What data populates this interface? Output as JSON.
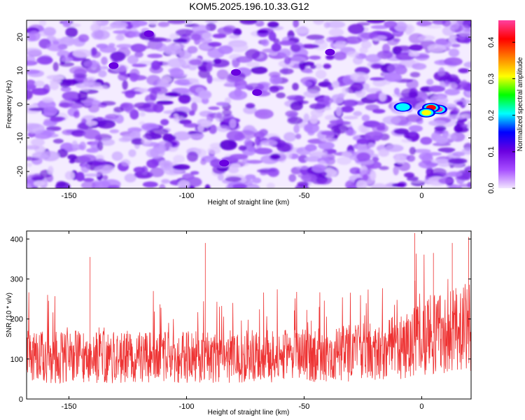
{
  "title": "KOM5.2025.196.10.33.G12",
  "chart_data": [
    {
      "type": "heatmap",
      "xlabel": "Height of straight line (km)",
      "ylabel": "Frequency (Hz)",
      "xlim": [
        -168,
        21
      ],
      "ylim": [
        -25,
        25
      ],
      "x_ticks": [
        -150,
        -100,
        -50,
        0
      ],
      "y_ticks": [
        -20,
        -10,
        0,
        10,
        20
      ],
      "colorbar": {
        "label": "Normalized spectral amplitude",
        "range": [
          0,
          0.46
        ],
        "ticks": [
          0.0,
          0.1,
          0.2,
          0.3,
          0.4
        ],
        "colors": [
          "#f2e6ff",
          "#a64dff",
          "#6a00e0",
          "#0000ff",
          "#00ffff",
          "#00ff00",
          "#ffff00",
          "#ff8000",
          "#ff0000",
          "#ff40a0"
        ]
      },
      "hotspots": [
        {
          "x": 7,
          "y": -1.5,
          "value": 0.46
        },
        {
          "x": 4,
          "y": -1.0,
          "value": 0.42
        },
        {
          "x": 2,
          "y": -2.5,
          "value": 0.3
        },
        {
          "x": -8,
          "y": -0.8,
          "value": 0.22
        },
        {
          "x": -131,
          "y": 11.5,
          "value": 0.12
        },
        {
          "x": -79,
          "y": 9.5,
          "value": 0.1
        },
        {
          "x": -70,
          "y": 3.5,
          "value": 0.1
        },
        {
          "x": -84,
          "y": -17.5,
          "value": 0.09
        },
        {
          "x": -116,
          "y": 21,
          "value": 0.08
        },
        {
          "x": -39,
          "y": 15.5,
          "value": 0.08
        }
      ]
    },
    {
      "type": "line",
      "xlabel": "Height of straight line (km)",
      "ylabel": "SNR (10 * v/v)",
      "xlim": [
        -168,
        21
      ],
      "ylim": [
        0,
        420
      ],
      "x_ticks": [
        -150,
        -100,
        -50,
        0
      ],
      "y_ticks": [
        0,
        100,
        200,
        300,
        400
      ],
      "color": "#ee3333",
      "baseline_profile": [
        {
          "x": -168,
          "y": 105
        },
        {
          "x": -100,
          "y": 105
        },
        {
          "x": -50,
          "y": 108
        },
        {
          "x": -20,
          "y": 118
        },
        {
          "x": -5,
          "y": 135
        },
        {
          "x": 5,
          "y": 165
        },
        {
          "x": 21,
          "y": 180
        }
      ],
      "peaks": [
        {
          "x": -3,
          "y": 415
        },
        {
          "x": 20,
          "y": 405
        },
        {
          "x": -92,
          "y": 390
        },
        {
          "x": 13,
          "y": 390
        },
        {
          "x": 5,
          "y": 365
        },
        {
          "x": -141,
          "y": 355
        }
      ]
    }
  ]
}
